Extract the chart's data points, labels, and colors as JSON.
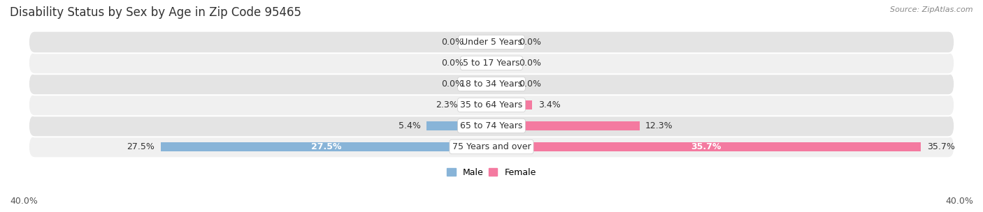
{
  "title": "Disability Status by Sex by Age in Zip Code 95465",
  "source": "Source: ZipAtlas.com",
  "categories": [
    "Under 5 Years",
    "5 to 17 Years",
    "18 to 34 Years",
    "35 to 64 Years",
    "65 to 74 Years",
    "75 Years and over"
  ],
  "male_values": [
    0.0,
    0.0,
    0.0,
    2.3,
    5.4,
    27.5
  ],
  "female_values": [
    0.0,
    0.0,
    0.0,
    3.4,
    12.3,
    35.7
  ],
  "male_color": "#88b4d8",
  "female_color": "#f47aa0",
  "row_bg_light": "#f0f0f0",
  "row_bg_dark": "#e4e4e4",
  "max_val": 40.0,
  "title_fontsize": 12,
  "label_fontsize": 9,
  "source_fontsize": 8,
  "bar_height": 0.62,
  "figsize": [
    14.06,
    3.04
  ],
  "dpi": 100
}
